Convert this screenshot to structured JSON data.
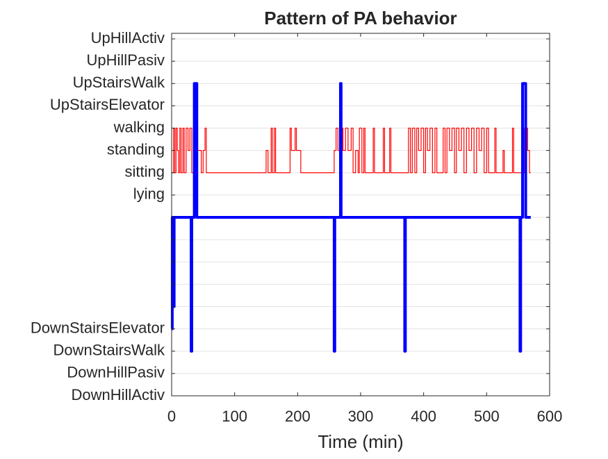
{
  "chart_data": {
    "type": "line",
    "title": "Pattern of PA behavior",
    "x_label": "Time (min)",
    "drawstyle": "steps-post",
    "grid": true,
    "xlim": [
      0,
      600
    ],
    "xticks": [
      0,
      100,
      200,
      300,
      400,
      500,
      600
    ],
    "ylim": [
      -8,
      8.25
    ],
    "yticks": [
      {
        "value": 8,
        "label": "UpHillActiv"
      },
      {
        "value": 7,
        "label": "UpHillPasiv"
      },
      {
        "value": 6,
        "label": "UpStairsWalk"
      },
      {
        "value": 5,
        "label": "UpStairsElevator"
      },
      {
        "value": 4,
        "label": "walking"
      },
      {
        "value": 3,
        "label": "standing"
      },
      {
        "value": 2,
        "label": "sitting"
      },
      {
        "value": 1,
        "label": "lying"
      },
      {
        "value": 0,
        "label": null
      },
      {
        "value": -1,
        "label": null
      },
      {
        "value": -2,
        "label": null
      },
      {
        "value": -3,
        "label": null
      },
      {
        "value": -4,
        "label": null
      },
      {
        "value": -5,
        "label": "DownStairsElevator"
      },
      {
        "value": -6,
        "label": "DownStairsWalk"
      },
      {
        "value": -7,
        "label": "DownHillPasiv"
      },
      {
        "value": -8,
        "label": "DownHillActiv"
      }
    ],
    "series": [
      {
        "color": "#ff0000",
        "width": 1.2,
        "x": [
          0,
          3,
          5,
          7,
          9,
          11,
          13,
          15,
          18,
          20,
          23,
          26,
          29,
          32,
          35,
          40,
          47,
          50,
          53,
          55,
          150,
          153,
          158,
          160,
          163,
          165,
          188,
          190,
          196,
          198,
          205,
          258,
          261,
          264,
          268,
          272,
          276,
          280,
          285,
          288,
          292,
          296,
          298,
          302,
          305,
          307,
          320,
          322,
          336,
          338,
          346,
          348,
          376,
          379,
          382,
          386,
          389,
          392,
          396,
          400,
          403,
          406,
          410,
          414,
          418,
          421,
          431,
          434,
          437,
          441,
          445,
          449,
          452,
          456,
          460,
          464,
          468,
          472,
          476,
          480,
          484,
          488,
          492,
          496,
          500,
          503,
          513,
          515,
          526,
          528,
          541,
          543,
          556,
          559,
          562,
          565,
          568,
          570
        ],
        "values": [
          2,
          4,
          2,
          4,
          3,
          2,
          4,
          2,
          4,
          2,
          4,
          3,
          4,
          2,
          4,
          3,
          2,
          3,
          4,
          2,
          3,
          2,
          4,
          2,
          4,
          2,
          4,
          3,
          4,
          3,
          2,
          3,
          4,
          3,
          4,
          3,
          4,
          3,
          4,
          2,
          3,
          2,
          4,
          2,
          4,
          2,
          4,
          2,
          4,
          2,
          4,
          2,
          4,
          2,
          4,
          2,
          4,
          3,
          4,
          2,
          4,
          3,
          4,
          2,
          4,
          2,
          4,
          2,
          4,
          3,
          4,
          2,
          4,
          3,
          4,
          2,
          4,
          3,
          4,
          2,
          4,
          3,
          4,
          2,
          4,
          2,
          4,
          2,
          3,
          2,
          4,
          2,
          4,
          2,
          4,
          3,
          2,
          2
        ]
      },
      {
        "color": "#0000ff",
        "width": 4,
        "x": [
          0,
          1,
          3,
          4,
          31,
          32,
          36,
          40,
          258,
          259,
          268,
          269,
          370,
          371,
          553,
          554,
          557,
          562,
          570
        ],
        "values": [
          -5,
          0,
          -4,
          0,
          -6,
          0,
          6,
          0,
          -6,
          0,
          6,
          0,
          -6,
          0,
          -6,
          0,
          6,
          0,
          0
        ]
      }
    ]
  }
}
